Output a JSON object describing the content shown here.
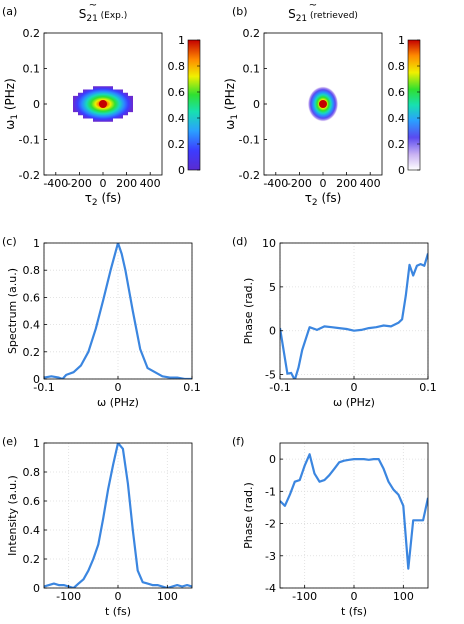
{
  "figure": {
    "panel_labels": [
      "(a)",
      "(b)",
      "(c)",
      "(d)",
      "(e)",
      "(f)"
    ],
    "colorbar_ticks": [
      "0",
      "0.2",
      "0.4",
      "0.6",
      "0.8",
      "1"
    ]
  },
  "chart_data": [
    {
      "type": "heatmap",
      "title": "S̃21 (Exp.)",
      "title_main": "S",
      "title_sub": "21",
      "title_note": "(Exp.)",
      "xlabel": "τ2 (fs)",
      "ylabel": "ω1 (PHz)",
      "xlim": [
        -500,
        500
      ],
      "ylim": [
        -0.2,
        0.2
      ],
      "xticks": [
        -400,
        -200,
        0,
        200,
        400
      ],
      "yticks": [
        -0.2,
        -0.1,
        0,
        0.1,
        0.2
      ],
      "xtick_labels": [
        "-400",
        "-200",
        "0",
        "200",
        "400"
      ],
      "ytick_labels": [
        "-0.2",
        "-0.1",
        "0",
        "0.1",
        "0.2"
      ],
      "colorbar": {
        "range": [
          0,
          1
        ],
        "ticks": [
          0,
          0.2,
          0.4,
          0.6,
          0.8,
          1
        ],
        "colormap": "jet"
      },
      "peak": {
        "x": 0,
        "y": 0,
        "value": 1
      },
      "extent_tau_fs": [
        -120,
        120
      ],
      "extent_omega_phz": [
        -0.05,
        0.05
      ]
    },
    {
      "type": "heatmap",
      "title": "S̃21 (retrieved)",
      "title_main": "S",
      "title_sub": "21",
      "title_note": "(retrieved)",
      "xlabel": "τ2 (fs)",
      "ylabel": "ω1 (PHz)",
      "xlim": [
        -500,
        500
      ],
      "ylim": [
        -0.2,
        0.2
      ],
      "xticks": [
        -400,
        -200,
        0,
        200,
        400
      ],
      "yticks": [
        -0.2,
        -0.1,
        0,
        0.1,
        0.2
      ],
      "xtick_labels": [
        "-400",
        "-200",
        "0",
        "200",
        "400"
      ],
      "ytick_labels": [
        "-0.2",
        "-0.1",
        "0",
        "0.1",
        "0.2"
      ],
      "colorbar": {
        "range": [
          0,
          1
        ],
        "ticks": [
          0,
          0.2,
          0.4,
          0.6,
          0.8,
          1
        ],
        "colormap": "jet-white"
      },
      "peak": {
        "x": 0,
        "y": 0,
        "value": 1
      },
      "extent_tau_fs": [
        -130,
        130
      ],
      "extent_omega_phz": [
        -0.05,
        0.05
      ]
    },
    {
      "type": "line",
      "xlabel": "ω (PHz)",
      "ylabel": "Spectrum (a.u.)",
      "xlim": [
        -0.1,
        0.1
      ],
      "ylim": [
        0,
        1
      ],
      "xticks": [
        -0.1,
        0,
        0.1
      ],
      "yticks": [
        0,
        0.2,
        0.4,
        0.6,
        0.8,
        1
      ],
      "xtick_labels": [
        "-0.1",
        "0",
        "0.1"
      ],
      "ytick_labels": [
        "0",
        "0.2",
        "0.4",
        "0.6",
        "0.8",
        "1"
      ],
      "grid": true,
      "color": "#3b86e0",
      "x": [
        -0.1,
        -0.09,
        -0.08,
        -0.075,
        -0.07,
        -0.06,
        -0.05,
        -0.04,
        -0.03,
        -0.02,
        -0.01,
        0,
        0.005,
        0.01,
        0.02,
        0.03,
        0.04,
        0.05,
        0.06,
        0.07,
        0.08,
        0.09,
        0.1
      ],
      "y": [
        0.01,
        0.02,
        0.01,
        0.0,
        0.03,
        0.05,
        0.1,
        0.2,
        0.37,
        0.58,
        0.8,
        1.0,
        0.92,
        0.8,
        0.5,
        0.22,
        0.08,
        0.05,
        0.02,
        0.01,
        0.01,
        0.0,
        0.0
      ]
    },
    {
      "type": "line",
      "xlabel": "ω (PHz)",
      "ylabel": "Phase (rad.)",
      "xlim": [
        -0.1,
        0.1
      ],
      "ylim": [
        -5.5,
        10
      ],
      "xticks": [
        -0.1,
        0,
        0.1
      ],
      "yticks": [
        -5,
        0,
        5,
        10
      ],
      "xtick_labels": [
        "-0.1",
        "0",
        "0.1"
      ],
      "ytick_labels": [
        "-5",
        "0",
        "5",
        "10"
      ],
      "grid": true,
      "color": "#3b86e0",
      "x": [
        -0.1,
        -0.09,
        -0.085,
        -0.08,
        -0.075,
        -0.07,
        -0.06,
        -0.05,
        -0.04,
        -0.03,
        -0.02,
        -0.01,
        0,
        0.01,
        0.02,
        0.03,
        0.04,
        0.05,
        0.06,
        0.065,
        0.07,
        0.075,
        0.08,
        0.085,
        0.09,
        0.095,
        0.1
      ],
      "y": [
        0.3,
        -4.9,
        -4.8,
        -5.6,
        -4.2,
        -2.2,
        0.4,
        0.1,
        0.5,
        0.4,
        0.3,
        0.2,
        0.0,
        0.1,
        0.3,
        0.4,
        0.6,
        0.5,
        0.9,
        1.3,
        4.0,
        7.5,
        6.3,
        7.4,
        7.6,
        7.4,
        8.8
      ]
    },
    {
      "type": "line",
      "xlabel": "t (fs)",
      "ylabel": "Intensity (a.u.)",
      "xlim": [
        -150,
        150
      ],
      "ylim": [
        0,
        1
      ],
      "xticks": [
        -100,
        0,
        100
      ],
      "yticks": [
        0,
        0.2,
        0.4,
        0.6,
        0.8,
        1
      ],
      "xtick_labels": [
        "-100",
        "0",
        "100"
      ],
      "ytick_labels": [
        "0",
        "0.2",
        "0.4",
        "0.6",
        "0.8",
        "1"
      ],
      "grid": true,
      "color": "#3b86e0",
      "x": [
        -150,
        -140,
        -130,
        -120,
        -110,
        -100,
        -90,
        -80,
        -70,
        -60,
        -50,
        -40,
        -30,
        -20,
        -10,
        0,
        10,
        20,
        30,
        40,
        50,
        60,
        70,
        80,
        90,
        100,
        110,
        120,
        130,
        140,
        150
      ],
      "y": [
        0.01,
        0.02,
        0.03,
        0.02,
        0.02,
        0.01,
        0.0,
        0.03,
        0.06,
        0.12,
        0.2,
        0.3,
        0.48,
        0.68,
        0.85,
        1.0,
        0.96,
        0.72,
        0.4,
        0.12,
        0.04,
        0.03,
        0.02,
        0.02,
        0.01,
        0.0,
        0.01,
        0.02,
        0.01,
        0.02,
        0.01
      ]
    },
    {
      "type": "line",
      "xlabel": "t (fs)",
      "ylabel": "Phase (rad.)",
      "xlim": [
        -150,
        150
      ],
      "ylim": [
        -4,
        0.5
      ],
      "xticks": [
        -100,
        0,
        100
      ],
      "yticks": [
        -4,
        -3,
        -2,
        -1,
        0
      ],
      "xtick_labels": [
        "-100",
        "0",
        "100"
      ],
      "ytick_labels": [
        "-4",
        "-3",
        "-2",
        "-1",
        "0"
      ],
      "grid": true,
      "color": "#3b86e0",
      "x": [
        -150,
        -140,
        -130,
        -120,
        -110,
        -100,
        -90,
        -80,
        -70,
        -60,
        -50,
        -40,
        -30,
        -20,
        -10,
        0,
        10,
        20,
        30,
        40,
        50,
        60,
        70,
        80,
        90,
        100,
        110,
        120,
        130,
        140,
        150
      ],
      "y": [
        -1.3,
        -1.45,
        -1.1,
        -0.7,
        -0.65,
        -0.2,
        0.15,
        -0.45,
        -0.7,
        -0.65,
        -0.5,
        -0.3,
        -0.1,
        -0.05,
        -0.02,
        0.0,
        0.0,
        0.0,
        -0.02,
        0.0,
        0.0,
        -0.3,
        -0.7,
        -0.95,
        -1.1,
        -1.45,
        -3.4,
        -1.9,
        -1.9,
        -1.9,
        -1.2
      ]
    }
  ]
}
